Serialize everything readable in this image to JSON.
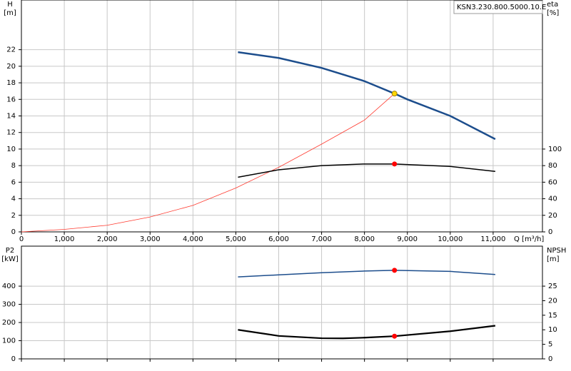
{
  "chart_data": [
    {
      "type": "line",
      "annotation": "KSN3.230.800.5000.10.E",
      "ylabel": "H",
      "yunit": "[m]",
      "y2label": "eta",
      "y2unit": "[%]",
      "xlabel": "Q [m³/h]",
      "xlim": [
        0,
        12150
      ],
      "ylim": [
        0,
        28
      ],
      "y2lim": [
        0,
        280
      ],
      "xticks": [
        0,
        {
          "value": 1000,
          "label": "1,000"
        },
        {
          "value": 2000,
          "label": "2,000"
        },
        {
          "value": 3000,
          "label": "3,000"
        },
        {
          "value": 4000,
          "label": "4,000"
        },
        {
          "value": 5000,
          "label": "5,000"
        },
        {
          "value": 6000,
          "label": "6,000"
        },
        {
          "value": 7000,
          "label": "7,000"
        },
        {
          "value": 8000,
          "label": "8,000"
        },
        {
          "value": 9000,
          "label": "9,000"
        },
        {
          "value": 10000,
          "label": "10,000"
        },
        {
          "value": 11000,
          "label": "11,000"
        }
      ],
      "xtick_labels": true,
      "yticks": [
        0,
        2,
        4,
        6,
        8,
        10,
        12,
        14,
        16,
        18,
        20,
        22
      ],
      "y2ticks": [
        0,
        20,
        40,
        60,
        80,
        100
      ],
      "grid": true,
      "series": [
        {
          "color": "#ff3b30",
          "line_width": 0.8,
          "x": [
            0,
            1000,
            2000,
            3000,
            4000,
            5000,
            6000,
            7000,
            8000,
            8700
          ],
          "values": [
            0,
            0.3,
            0.8,
            1.8,
            3.2,
            5.3,
            7.8,
            10.6,
            13.5,
            16.7
          ]
        },
        {
          "color": "#1c4d8c",
          "line_width": 2.5,
          "x": [
            5050,
            6000,
            7000,
            8000,
            8700,
            9000,
            10000,
            11050
          ],
          "values": [
            21.7,
            21.0,
            19.8,
            18.2,
            16.7,
            16.0,
            14.0,
            11.2
          ]
        },
        {
          "color": "#000000",
          "line_width": 1.5,
          "axis": "y2",
          "x": [
            5050,
            6000,
            7000,
            8000,
            8700,
            10000,
            11050
          ],
          "values": [
            66,
            75,
            80,
            82,
            82,
            79,
            73
          ]
        }
      ],
      "points": [
        {
          "x": 8700,
          "y": 16.7,
          "color": "#ffd700"
        },
        {
          "x": 8700,
          "y": 82,
          "color": "#ff0000",
          "axis": "y2"
        }
      ]
    },
    {
      "type": "line",
      "ylabel": "P2",
      "yunit": "[kW]",
      "y2label": "NPSH",
      "y2unit": "[m]",
      "xlim": [
        0,
        12150
      ],
      "ylim": [
        0,
        620
      ],
      "y2lim": [
        0,
        38.75
      ],
      "xticks": [
        0,
        1000,
        2000,
        3000,
        4000,
        5000,
        6000,
        7000,
        8000,
        9000,
        10000,
        11000
      ],
      "xtick_labels": false,
      "yticks": [
        0,
        100,
        200,
        300,
        400
      ],
      "y2ticks": [
        0,
        5,
        10,
        15,
        20,
        25
      ],
      "grid": true,
      "series": [
        {
          "color": "#1c4d8c",
          "line_width": 1.5,
          "x": [
            5050,
            6000,
            7000,
            8000,
            8700,
            10000,
            11050
          ],
          "values": [
            451,
            462,
            474,
            483,
            487,
            481,
            464
          ]
        },
        {
          "color": "#000000",
          "line_width": 2.2,
          "axis": "y2",
          "x": [
            5050,
            6000,
            7000,
            7500,
            8000,
            8700,
            10000,
            11050
          ],
          "values": [
            10.0,
            7.9,
            7.1,
            7.05,
            7.3,
            7.8,
            9.5,
            11.4
          ]
        }
      ],
      "points": [
        {
          "x": 8700,
          "y": 487,
          "color": "#ff0000"
        },
        {
          "x": 8700,
          "y": 7.8,
          "color": "#ff0000",
          "axis": "y2"
        }
      ]
    }
  ]
}
